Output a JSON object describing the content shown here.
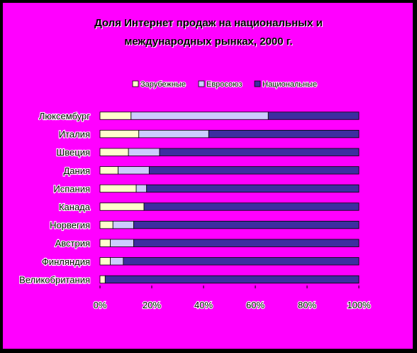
{
  "chart_data": {
    "type": "bar",
    "stacked": "percent",
    "orientation": "horizontal",
    "title": [
      "Доля Интернет продаж на национальных и",
      "международных рынках, 2000 г."
    ],
    "categories": [
      "Великобритания",
      "Финляндия",
      "Австрия",
      "Норвегия",
      "Канада",
      "Испания",
      "Дания",
      "Швеция",
      "Италия",
      "Люксембург"
    ],
    "series": [
      {
        "name": "Зарубежные",
        "color": "#ffffcc",
        "values": [
          2,
          4,
          4,
          5,
          17,
          14,
          7,
          11,
          15,
          12
        ]
      },
      {
        "name": "Евросоюз",
        "color": "#ccccff",
        "values": [
          0,
          5,
          9,
          8,
          0,
          4,
          12,
          12,
          27,
          53
        ]
      },
      {
        "name": "Национальные",
        "color": "#3d2ea0",
        "values": [
          98,
          91,
          87,
          87,
          83,
          82,
          81,
          77,
          58,
          35
        ]
      }
    ],
    "x_ticks": [
      "0%",
      "20%",
      "40%",
      "60%",
      "80%",
      "100%"
    ],
    "xlim": [
      0,
      100
    ],
    "grid": false,
    "legend": "top",
    "background_color": "#ff00ff"
  }
}
